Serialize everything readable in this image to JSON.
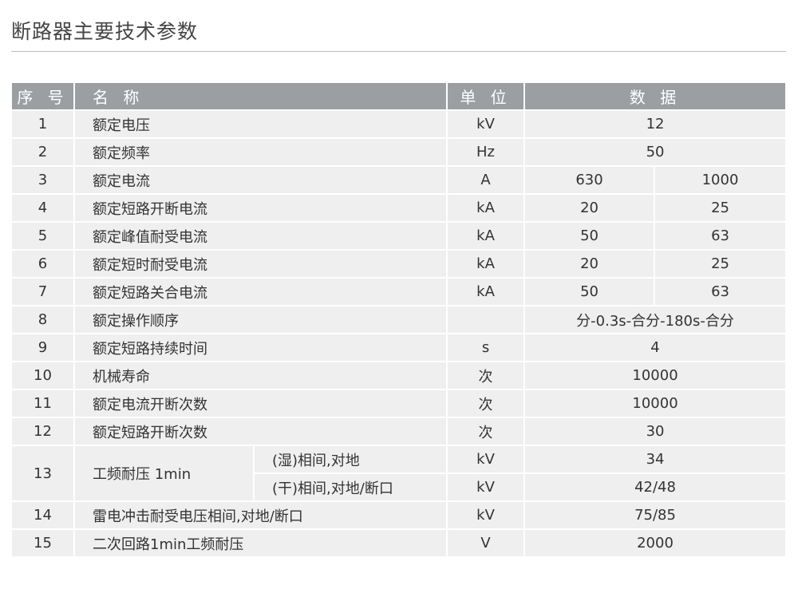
{
  "title": "断路器主要技术参数",
  "header": {
    "seq": "序 号",
    "name": "名 称",
    "unit": "单 位",
    "data": "数 据"
  },
  "rows": [
    {
      "seq": "1",
      "name": "额定电压",
      "unit": "kV",
      "values": [
        "12"
      ]
    },
    {
      "seq": "2",
      "name": "额定频率",
      "unit": "Hz",
      "values": [
        "50"
      ]
    },
    {
      "seq": "3",
      "name": "额定电流",
      "unit": "A",
      "values": [
        "630",
        "1000"
      ]
    },
    {
      "seq": "4",
      "name": "额定短路开断电流",
      "unit": "kA",
      "values": [
        "20",
        "25"
      ]
    },
    {
      "seq": "5",
      "name": "额定峰值耐受电流",
      "unit": "kA",
      "values": [
        "50",
        "63"
      ]
    },
    {
      "seq": "6",
      "name": "额定短时耐受电流",
      "unit": "kA",
      "values": [
        "20",
        "25"
      ]
    },
    {
      "seq": "7",
      "name": "额定短路关合电流",
      "unit": "kA",
      "values": [
        "50",
        "63"
      ]
    },
    {
      "seq": "8",
      "name": "额定操作顺序",
      "unit": "",
      "values": [
        "分-0.3s-合分-180s-合分"
      ]
    },
    {
      "seq": "9",
      "name": "额定短路持续时间",
      "unit": "s",
      "values": [
        "4"
      ]
    },
    {
      "seq": "10",
      "name": "机械寿命",
      "unit": "次",
      "values": [
        "10000"
      ]
    },
    {
      "seq": "11",
      "name": "额定电流开断次数",
      "unit": "次",
      "values": [
        "10000"
      ]
    },
    {
      "seq": "12",
      "name": "额定短路开断次数",
      "unit": "次",
      "values": [
        "30"
      ]
    },
    {
      "seq": "13",
      "name": "工频耐压 1min",
      "sub": [
        {
          "name": "(湿)相间,对地",
          "unit": "kV",
          "values": [
            "34"
          ]
        },
        {
          "name": "(干)相间,对地/断口",
          "unit": "kV",
          "values": [
            "42/48"
          ]
        }
      ]
    },
    {
      "seq": "14",
      "name": "雷电冲击耐受电压相间,对地/断口",
      "unit": "kV",
      "values": [
        "75/85"
      ]
    },
    {
      "seq": "15",
      "name": "二次回路1min工频耐压",
      "unit": "V",
      "values": [
        "2000"
      ]
    }
  ]
}
